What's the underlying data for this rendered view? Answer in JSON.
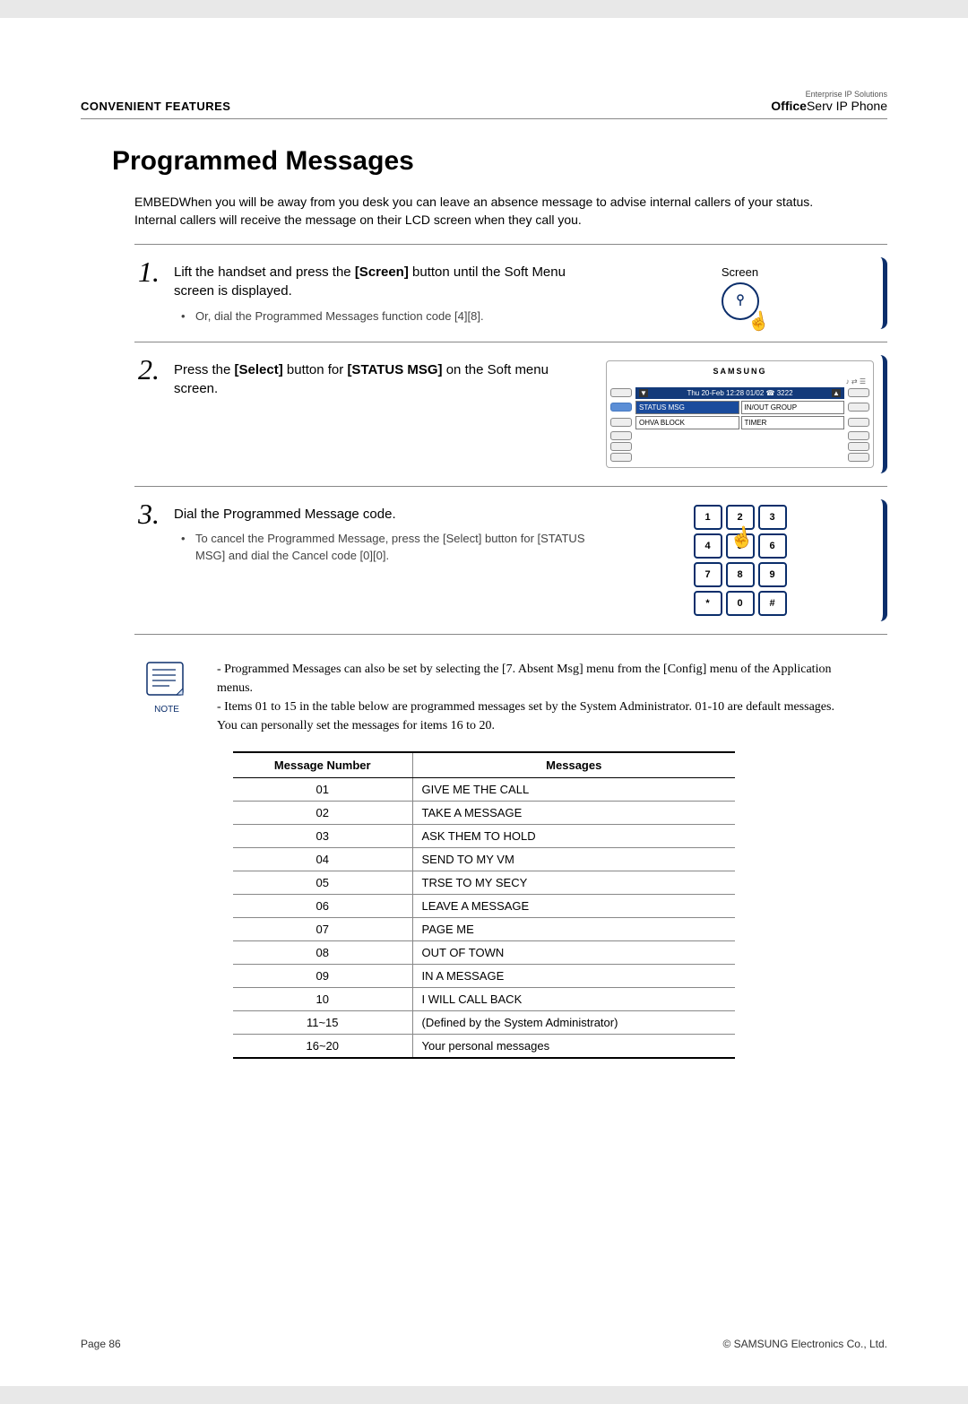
{
  "header": {
    "section": "CONVENIENT FEATURES"
  },
  "brand": {
    "subtitle": "Enterprise IP Solutions",
    "bold": "Office",
    "light": "Serv",
    "tail": " IP Phone"
  },
  "title": "Programmed Messages",
  "intro": "EMBEDWhen you will be away from you desk you can leave an absence message to advise internal callers of your status. Internal callers will receive the message on their LCD screen when they call you.",
  "steps": [
    {
      "num": "1.",
      "text_pre": "Lift the handset and press the ",
      "text_bold": "[Screen]",
      "text_post": " button until the Soft Menu screen is displayed.",
      "sub": "Or, dial the Programmed Messages function code [4][8].",
      "illus_label": "Screen"
    },
    {
      "num": "2.",
      "text_pre": "Press the ",
      "text_bold": "[Select]",
      "text_post": " button for ",
      "text_bold2": "[STATUS MSG]",
      "text_post2": " on the Soft menu screen.",
      "screen": {
        "head": "SAMSUNG",
        "datetime": "Thu 20-Feb 12:28  01/02  ☎ 3222",
        "menus": [
          "STATUS MSG",
          "IN/OUT GROUP",
          "OHVA BLOCK",
          "TIMER"
        ]
      }
    },
    {
      "num": "3.",
      "text_pre": "Dial the Programmed Message code.",
      "sub": "To cancel the Programmed Message, press the [Select] button for [STATUS MSG] and dial the Cancel code [0][0].",
      "keypad": [
        "1",
        "2",
        "3",
        "4",
        "5",
        "6",
        "7",
        "8",
        "9",
        "*",
        "0",
        "#"
      ]
    }
  ],
  "note": {
    "label": "NOTE",
    "lines": [
      "- Programmed Messages can also be set by selecting the [7. Absent Msg] menu from the [Config] menu of the Application menus.",
      "- Items 01 to 15 in the table below are programmed messages set by the System Administrator. 01-10 are default messages. You can personally set the messages for items 16 to 20."
    ]
  },
  "table": {
    "headers": [
      "Message Number",
      "Messages"
    ],
    "rows": [
      [
        "01",
        "GIVE ME THE CALL"
      ],
      [
        "02",
        "TAKE A MESSAGE"
      ],
      [
        "03",
        "ASK THEM TO HOLD"
      ],
      [
        "04",
        "SEND TO MY VM"
      ],
      [
        "05",
        "TRSE TO MY SECY"
      ],
      [
        "06",
        "LEAVE A MESSAGE"
      ],
      [
        "07",
        "PAGE ME"
      ],
      [
        "08",
        "OUT OF TOWN"
      ],
      [
        "09",
        "IN A MESSAGE"
      ],
      [
        "10",
        "I WILL CALL BACK"
      ],
      [
        "11~15",
        "(Defined by the System Administrator)"
      ],
      [
        "16~20",
        "Your personal messages"
      ]
    ]
  },
  "footer": {
    "left": "Page 86",
    "right": "© SAMSUNG Electronics Co., Ltd."
  },
  "colors": {
    "accent": "#0b2e6b",
    "rule": "#888888"
  }
}
